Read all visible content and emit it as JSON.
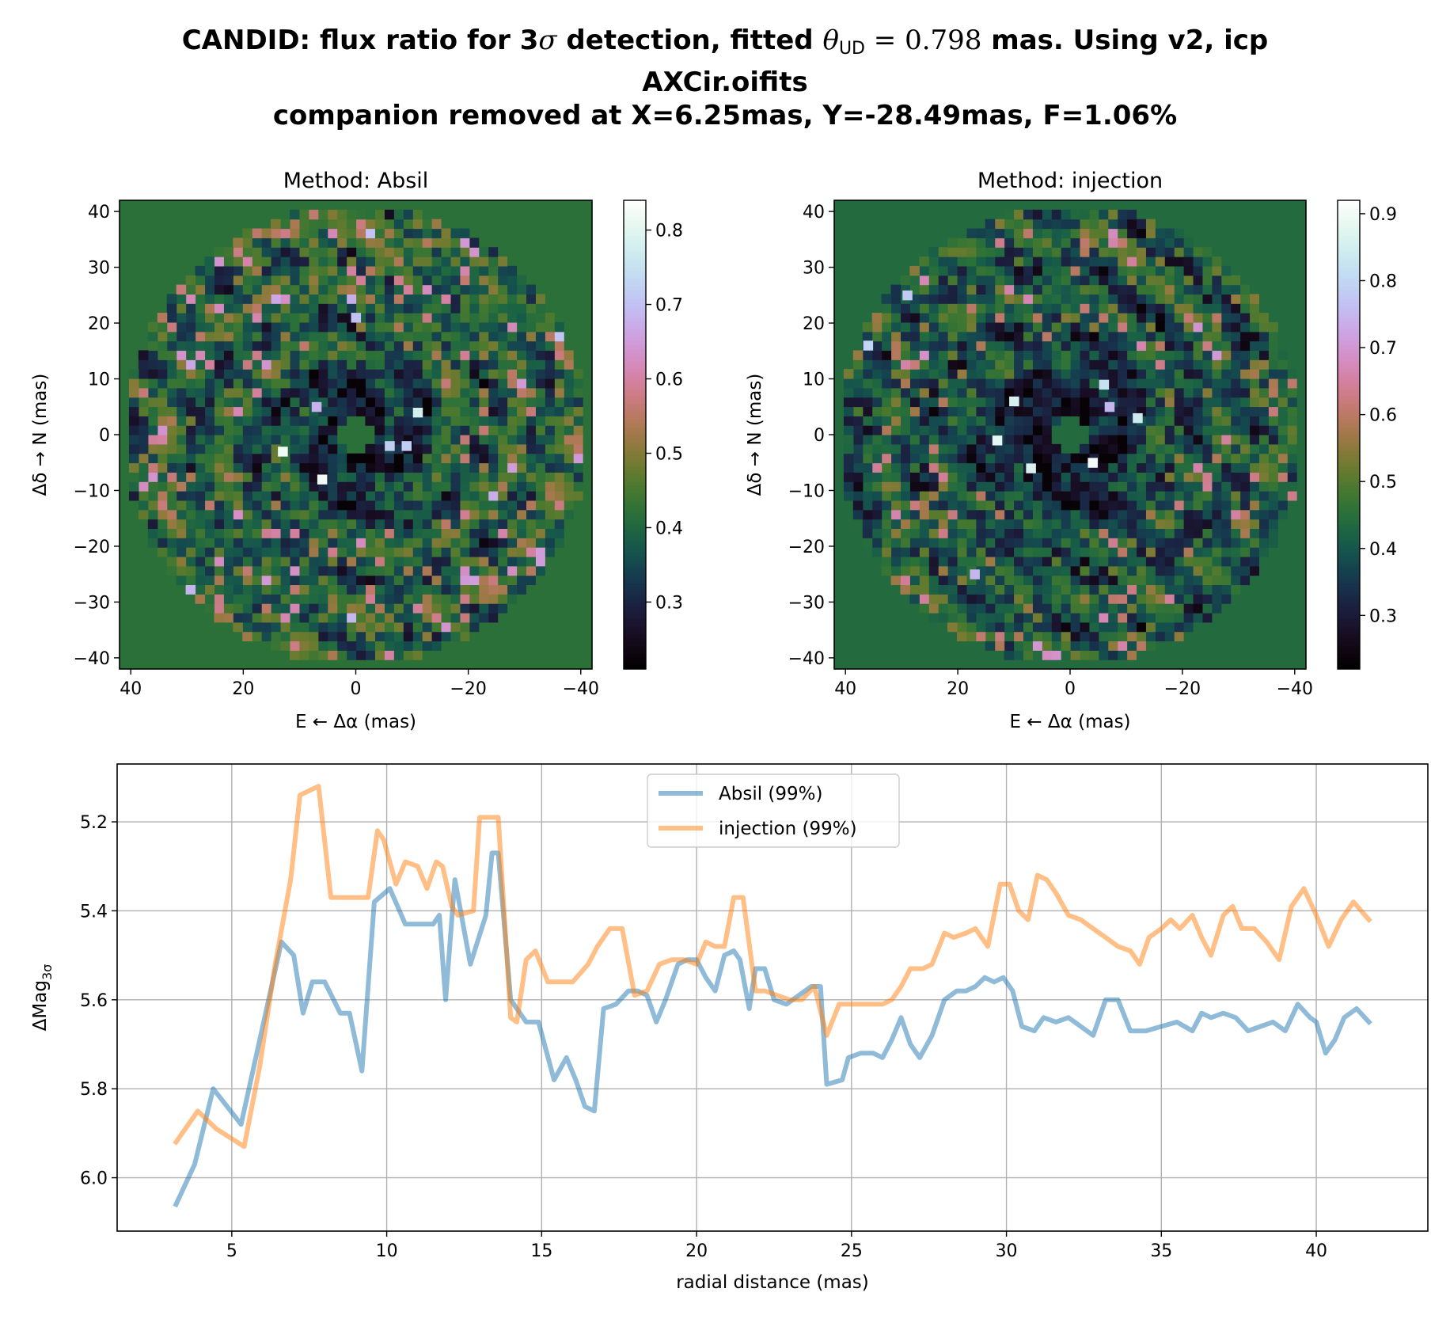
{
  "figure": {
    "title": {
      "line1_prefix": "CANDID: flux ratio for 3",
      "line1_sigma": "σ",
      "line1_middle": " detection, fitted ",
      "line1_theta": "θ",
      "line1_sub": "UD",
      "line1_equals": " = 0.798",
      "line1_suffix": " mas. Using v2, icp",
      "line2": "AXCir.oifits",
      "line3": "companion removed at X=6.25mas, Y=-28.49mas, F=1.06%"
    }
  },
  "chart_data": [
    {
      "type": "heatmap",
      "title": "Method: Absil",
      "xlabel": "E ← Δα (mas)",
      "ylabel": "Δδ → N (mas)",
      "xlim": [
        42,
        -42
      ],
      "ylim": [
        -42,
        42
      ],
      "x_ticks": [
        40,
        20,
        0,
        -20,
        -40
      ],
      "x_tick_labels": [
        "40",
        "20",
        "0",
        "−20",
        "−40"
      ],
      "y_ticks": [
        40,
        30,
        20,
        10,
        0,
        -10,
        -20,
        -30,
        -40
      ],
      "y_tick_labels": [
        "40",
        "30",
        "20",
        "10",
        "0",
        "−10",
        "−20",
        "−30",
        "−40"
      ],
      "colormap": "cubehelix",
      "colorbar": {
        "min": 0.21,
        "max": 0.84,
        "ticks": [
          0.3,
          0.4,
          0.5,
          0.6,
          0.7,
          0.8
        ],
        "tick_labels": [
          "0.3",
          "0.4",
          "0.5",
          "0.6",
          "0.7",
          "0.8"
        ]
      },
      "grid": {
        "n": 50,
        "r_min_mas": 3,
        "r_max_mas": 41
      },
      "background_value": 0.42,
      "bright_pixels": [
        [
          13,
          -3,
          0.82
        ],
        [
          -11,
          4,
          0.78
        ],
        [
          6,
          -8,
          0.82
        ],
        [
          -6,
          -2,
          0.72
        ],
        [
          0,
          21,
          0.7
        ],
        [
          -9,
          -2,
          0.72
        ],
        [
          7,
          5,
          0.68
        ]
      ]
    },
    {
      "type": "heatmap",
      "title": "Method: injection",
      "xlabel": "E ← Δα (mas)",
      "ylabel": "Δδ → N (mas)",
      "xlim": [
        42,
        -42
      ],
      "ylim": [
        -42,
        42
      ],
      "x_ticks": [
        40,
        20,
        0,
        -20,
        -40
      ],
      "x_tick_labels": [
        "40",
        "20",
        "0",
        "−20",
        "−40"
      ],
      "y_ticks": [
        40,
        30,
        20,
        10,
        0,
        -10,
        -20,
        -30,
        -40
      ],
      "y_tick_labels": [
        "40",
        "30",
        "20",
        "10",
        "0",
        "−10",
        "−20",
        "−30",
        "−40"
      ],
      "colormap": "cubehelix",
      "colorbar": {
        "min": 0.22,
        "max": 0.92,
        "ticks": [
          0.3,
          0.4,
          0.5,
          0.6,
          0.7,
          0.8,
          0.9
        ],
        "tick_labels": [
          "0.3",
          "0.4",
          "0.5",
          "0.6",
          "0.7",
          "0.8",
          "0.9"
        ]
      },
      "grid": {
        "n": 50,
        "r_min_mas": 3,
        "r_max_mas": 41
      },
      "background_value": 0.44,
      "bright_pixels": [
        [
          36,
          16,
          0.8
        ],
        [
          10,
          6,
          0.86
        ],
        [
          13,
          -1,
          0.88
        ],
        [
          7,
          -6,
          0.86
        ],
        [
          -4,
          -5,
          0.9
        ],
        [
          -12,
          3,
          0.84
        ],
        [
          -6,
          9,
          0.82
        ],
        [
          17,
          -25,
          0.75
        ],
        [
          29,
          25,
          0.78
        ],
        [
          -7,
          5,
          0.75
        ]
      ]
    },
    {
      "type": "line",
      "xlabel": "radial distance (mas)",
      "ylabel": "ΔMag",
      "ylabel_sub": "3σ",
      "xlim": [
        1.3,
        43.6
      ],
      "ylim": [
        6.12,
        5.07
      ],
      "y_inverted": true,
      "x_ticks": [
        5,
        10,
        15,
        20,
        25,
        30,
        35,
        40
      ],
      "y_ticks": [
        5.2,
        5.4,
        5.6,
        5.8,
        6.0
      ],
      "y_tick_labels": [
        "5.2",
        "5.4",
        "5.6",
        "5.8",
        "6.0"
      ],
      "grid": true,
      "legend_position": "top-center",
      "series": [
        {
          "name": "Absil (99%)",
          "color": "#1f77b4",
          "x": [
            3.2,
            3.8,
            4.4,
            5.3,
            6.6,
            7.0,
            7.3,
            7.6,
            8.0,
            8.5,
            8.8,
            9.2,
            9.6,
            10.1,
            10.6,
            11.0,
            11.5,
            11.7,
            11.9,
            12.2,
            12.7,
            13.2,
            13.4,
            13.6,
            14.0,
            14.5,
            14.9,
            15.4,
            15.8,
            16.1,
            16.4,
            16.7,
            17.0,
            17.4,
            17.8,
            18.1,
            18.4,
            18.7,
            19.0,
            19.4,
            19.7,
            20.0,
            20.3,
            20.6,
            20.9,
            21.2,
            21.4,
            21.7,
            21.9,
            22.2,
            22.5,
            22.9,
            23.3,
            23.7,
            24.0,
            24.2,
            24.7,
            24.9,
            25.3,
            25.7,
            26.0,
            26.3,
            26.6,
            26.9,
            27.2,
            27.6,
            28.0,
            28.4,
            28.7,
            29.0,
            29.3,
            29.6,
            29.9,
            30.2,
            30.5,
            30.9,
            31.2,
            31.6,
            32.0,
            32.4,
            32.8,
            33.2,
            33.6,
            34.0,
            34.5,
            35.0,
            35.5,
            36.0,
            36.3,
            36.6,
            37.0,
            37.4,
            37.8,
            38.2,
            38.6,
            39.0,
            39.4,
            39.8,
            40.0,
            40.3,
            40.6,
            40.9,
            41.3,
            41.7
          ],
          "y": [
            6.06,
            5.97,
            5.8,
            5.88,
            5.47,
            5.5,
            5.63,
            5.56,
            5.56,
            5.63,
            5.63,
            5.76,
            5.38,
            5.35,
            5.43,
            5.43,
            5.43,
            5.41,
            5.6,
            5.33,
            5.52,
            5.41,
            5.27,
            5.27,
            5.6,
            5.65,
            5.65,
            5.78,
            5.73,
            5.78,
            5.84,
            5.85,
            5.62,
            5.61,
            5.58,
            5.58,
            5.59,
            5.65,
            5.6,
            5.52,
            5.51,
            5.51,
            5.55,
            5.58,
            5.5,
            5.49,
            5.51,
            5.62,
            5.53,
            5.53,
            5.6,
            5.61,
            5.59,
            5.57,
            5.57,
            5.79,
            5.78,
            5.73,
            5.72,
            5.72,
            5.73,
            5.69,
            5.64,
            5.7,
            5.73,
            5.68,
            5.6,
            5.58,
            5.58,
            5.57,
            5.55,
            5.56,
            5.55,
            5.58,
            5.66,
            5.67,
            5.64,
            5.65,
            5.64,
            5.66,
            5.68,
            5.6,
            5.6,
            5.67,
            5.67,
            5.66,
            5.65,
            5.67,
            5.63,
            5.64,
            5.63,
            5.64,
            5.67,
            5.66,
            5.65,
            5.67,
            5.61,
            5.64,
            5.65,
            5.72,
            5.69,
            5.64,
            5.62,
            5.65
          ]
        },
        {
          "name": "injection (99%)",
          "color": "#ff7f0e",
          "x": [
            3.2,
            3.9,
            4.5,
            5.4,
            5.9,
            6.4,
            6.9,
            7.2,
            7.8,
            8.2,
            8.5,
            9.2,
            9.4,
            9.7,
            9.9,
            10.3,
            10.6,
            11.0,
            11.3,
            11.6,
            11.8,
            12.1,
            12.3,
            12.8,
            13.0,
            13.3,
            13.6,
            14.0,
            14.2,
            14.5,
            14.8,
            15.2,
            15.6,
            16.0,
            16.5,
            16.8,
            17.2,
            17.6,
            18.0,
            18.4,
            18.8,
            19.2,
            19.6,
            20.0,
            20.3,
            20.6,
            20.9,
            21.2,
            21.5,
            21.9,
            22.2,
            22.6,
            23.0,
            23.4,
            23.8,
            24.2,
            24.6,
            24.9,
            25.3,
            25.7,
            26.0,
            26.3,
            26.6,
            26.9,
            27.3,
            27.6,
            28.0,
            28.3,
            28.7,
            29.0,
            29.4,
            29.8,
            30.1,
            30.4,
            30.7,
            31.0,
            31.3,
            31.6,
            32.0,
            32.4,
            32.8,
            33.2,
            33.6,
            34.0,
            34.3,
            34.6,
            35.0,
            35.3,
            35.6,
            36.0,
            36.3,
            36.6,
            37.0,
            37.3,
            37.6,
            38.0,
            38.4,
            38.8,
            39.2,
            39.6,
            40.0,
            40.4,
            40.8,
            41.2,
            41.7
          ],
          "y": [
            5.92,
            5.85,
            5.89,
            5.93,
            5.75,
            5.52,
            5.33,
            5.14,
            5.12,
            5.37,
            5.37,
            5.37,
            5.37,
            5.22,
            5.24,
            5.34,
            5.29,
            5.3,
            5.35,
            5.29,
            5.3,
            5.39,
            5.41,
            5.4,
            5.19,
            5.19,
            5.19,
            5.64,
            5.65,
            5.51,
            5.49,
            5.56,
            5.56,
            5.56,
            5.52,
            5.48,
            5.44,
            5.44,
            5.59,
            5.58,
            5.52,
            5.51,
            5.51,
            5.52,
            5.47,
            5.48,
            5.48,
            5.37,
            5.37,
            5.58,
            5.58,
            5.59,
            5.6,
            5.6,
            5.57,
            5.68,
            5.61,
            5.61,
            5.61,
            5.61,
            5.61,
            5.6,
            5.57,
            5.53,
            5.53,
            5.52,
            5.45,
            5.46,
            5.45,
            5.44,
            5.48,
            5.34,
            5.34,
            5.4,
            5.42,
            5.32,
            5.33,
            5.36,
            5.41,
            5.42,
            5.44,
            5.46,
            5.48,
            5.49,
            5.52,
            5.46,
            5.44,
            5.42,
            5.44,
            5.41,
            5.46,
            5.5,
            5.41,
            5.39,
            5.44,
            5.44,
            5.47,
            5.51,
            5.39,
            5.35,
            5.41,
            5.48,
            5.42,
            5.38,
            5.42
          ]
        }
      ]
    }
  ]
}
